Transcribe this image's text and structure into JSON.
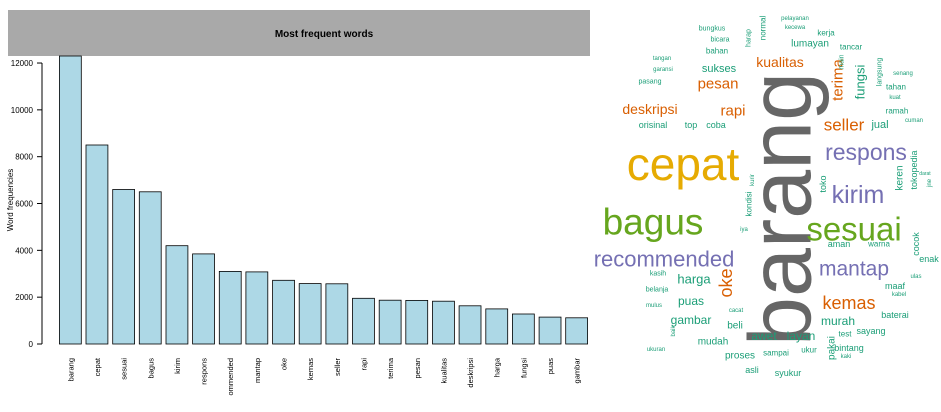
{
  "chart_data": [
    {
      "type": "bar",
      "title": "Most frequent words",
      "xlabel": "",
      "ylabel": "Word frequencies",
      "ylim": [
        0,
        12300
      ],
      "yticks": [
        0,
        2000,
        4000,
        6000,
        8000,
        10000,
        12000
      ],
      "categories": [
        "barang",
        "cepat",
        "sesuai",
        "bagus",
        "kirim",
        "respons",
        "recommended",
        "mantap",
        "oke",
        "kemas",
        "seller",
        "rapi",
        "terima",
        "pesan",
        "kualitas",
        "deskripsi",
        "harga",
        "fungsi",
        "puas",
        "gambar"
      ],
      "tick_labels": [
        "barang",
        "cepat",
        "sesuai",
        "bagus",
        "kirim",
        "respons",
        "ommended",
        "mantap",
        "oke",
        "kemas",
        "seller",
        "rapi",
        "terima",
        "pesan",
        "kualitas",
        "deskripsi",
        "harga",
        "fungsi",
        "puas",
        "gambar"
      ],
      "values": [
        12300,
        8500,
        6600,
        6500,
        4200,
        3850,
        3100,
        3080,
        2720,
        2580,
        2570,
        1950,
        1870,
        1860,
        1830,
        1630,
        1500,
        1280,
        1150,
        1120
      ],
      "bar_color": "#add8e6",
      "title_band_color": "#a9a9a9",
      "grid": false
    },
    {
      "type": "wordcloud",
      "colors": {
        "teal": "#1b9e77",
        "orange": "#d95f02",
        "purple": "#7570b3",
        "green": "#66a61e",
        "gold": "#e6ab02",
        "grey": "#666666"
      },
      "words": [
        {
          "text": "barang",
          "color": "#666666"
        },
        {
          "text": "cepat",
          "color": "#e6ab02"
        },
        {
          "text": "sesuai",
          "color": "#66a61e"
        },
        {
          "text": "bagus",
          "color": "#66a61e"
        },
        {
          "text": "kirim",
          "color": "#7570b3"
        },
        {
          "text": "respons",
          "color": "#7570b3"
        },
        {
          "text": "recommended",
          "color": "#7570b3"
        },
        {
          "text": "mantap",
          "color": "#7570b3"
        },
        {
          "text": "oke",
          "color": "#d95f02"
        },
        {
          "text": "kemas",
          "color": "#d95f02"
        },
        {
          "text": "seller",
          "color": "#d95f02"
        },
        {
          "text": "rapi",
          "color": "#d95f02"
        },
        {
          "text": "terima",
          "color": "#d95f02"
        },
        {
          "text": "pesan",
          "color": "#d95f02"
        },
        {
          "text": "kualitas",
          "color": "#d95f02"
        },
        {
          "text": "deskripsi",
          "color": "#d95f02"
        },
        {
          "text": "harga",
          "color": "#1b9e77"
        },
        {
          "text": "fungsi",
          "color": "#1b9e77"
        },
        {
          "text": "puas",
          "color": "#1b9e77"
        },
        {
          "text": "gambar",
          "color": "#1b9e77"
        },
        {
          "text": "sukses",
          "color": "#1b9e77"
        },
        {
          "text": "lumayan",
          "color": "#1b9e77"
        },
        {
          "text": "murah",
          "color": "#1b9e77"
        },
        {
          "text": "awet",
          "color": "#1b9e77"
        },
        {
          "text": "layan",
          "color": "#1b9e77"
        },
        {
          "text": "jual",
          "color": "#1b9e77"
        },
        {
          "text": "orisinal",
          "color": "#1b9e77"
        },
        {
          "text": "top",
          "color": "#1b9e77"
        },
        {
          "text": "coba",
          "color": "#1b9e77"
        },
        {
          "text": "proses",
          "color": "#1b9e77"
        },
        {
          "text": "mudah",
          "color": "#1b9e77"
        },
        {
          "text": "beli",
          "color": "#1b9e77"
        },
        {
          "text": "pakai",
          "color": "#1b9e77"
        },
        {
          "text": "bintang",
          "color": "#1b9e77"
        },
        {
          "text": "sayang",
          "color": "#1b9e77"
        },
        {
          "text": "baterai",
          "color": "#1b9e77"
        },
        {
          "text": "maaf",
          "color": "#1b9e77"
        },
        {
          "text": "cocok",
          "color": "#1b9e77"
        },
        {
          "text": "enak",
          "color": "#1b9e77"
        },
        {
          "text": "aman",
          "color": "#1b9e77"
        },
        {
          "text": "warna",
          "color": "#1b9e77"
        },
        {
          "text": "keren",
          "color": "#1b9e77"
        },
        {
          "text": "tokopedia",
          "color": "#1b9e77"
        },
        {
          "text": "tahan",
          "color": "#1b9e77"
        },
        {
          "text": "ramah",
          "color": "#1b9e77"
        },
        {
          "text": "tancar",
          "color": "#1b9e77"
        },
        {
          "text": "kerja",
          "color": "#1b9e77"
        },
        {
          "text": "pelayanan",
          "color": "#1b9e77"
        },
        {
          "text": "kecewa",
          "color": "#1b9e77"
        },
        {
          "text": "bungkus",
          "color": "#1b9e77"
        },
        {
          "text": "bicara",
          "color": "#1b9e77"
        },
        {
          "text": "bahan",
          "color": "#1b9e77"
        },
        {
          "text": "harap",
          "color": "#1b9e77"
        },
        {
          "text": "normal",
          "color": "#1b9e77"
        },
        {
          "text": "tangan",
          "color": "#1b9e77"
        },
        {
          "text": "garansi",
          "color": "#1b9e77"
        },
        {
          "text": "pasang",
          "color": "#1b9e77"
        },
        {
          "text": "main",
          "color": "#1b9e77"
        },
        {
          "text": "langsung",
          "color": "#1b9e77"
        },
        {
          "text": "senang",
          "color": "#1b9e77"
        },
        {
          "text": "kuat",
          "color": "#1b9e77"
        },
        {
          "text": "cuman",
          "color": "#1b9e77"
        },
        {
          "text": "toko",
          "color": "#1b9e77"
        },
        {
          "text": "kurir",
          "color": "#1b9e77"
        },
        {
          "text": "darat",
          "color": "#1b9e77"
        },
        {
          "text": "jne",
          "color": "#1b9e77"
        },
        {
          "text": "kondisi",
          "color": "#1b9e77"
        },
        {
          "text": "iya",
          "color": "#1b9e77"
        },
        {
          "text": "kasih",
          "color": "#1b9e77"
        },
        {
          "text": "belanja",
          "color": "#1b9e77"
        },
        {
          "text": "mulus",
          "color": "#1b9e77"
        },
        {
          "text": "ulas",
          "color": "#1b9e77"
        },
        {
          "text": "kabel",
          "color": "#1b9e77"
        },
        {
          "text": "cacat",
          "color": "#1b9e77"
        },
        {
          "text": "baik",
          "color": "#1b9e77"
        },
        {
          "text": "ukuran",
          "color": "#1b9e77"
        },
        {
          "text": "sampai",
          "color": "#1b9e77"
        },
        {
          "text": "ukur",
          "color": "#1b9e77"
        },
        {
          "text": "test",
          "color": "#1b9e77"
        },
        {
          "text": "kaki",
          "color": "#1b9e77"
        },
        {
          "text": "asli",
          "color": "#1b9e77"
        },
        {
          "text": "syukur",
          "color": "#1b9e77"
        }
      ]
    }
  ]
}
